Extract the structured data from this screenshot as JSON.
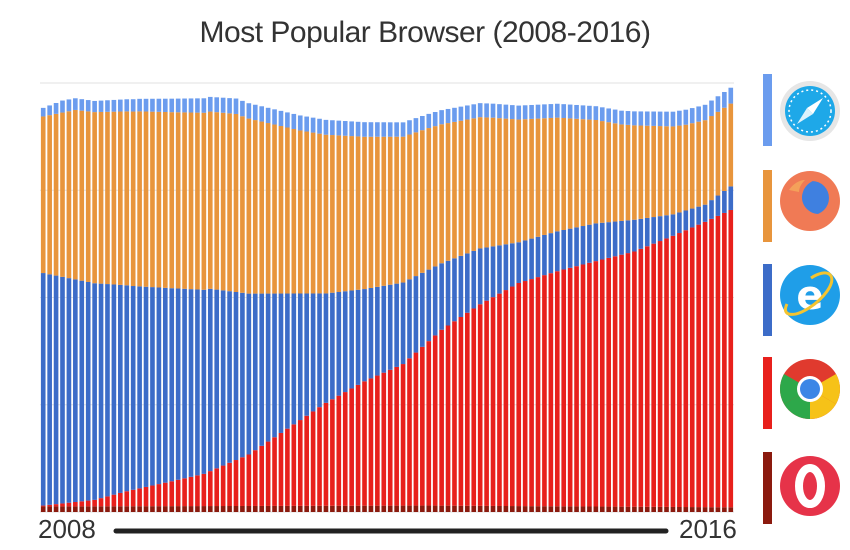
{
  "title": "Most Popular Browser (2008-2016)",
  "chart_data": {
    "type": "bar",
    "stacked": true,
    "percent_stacked": true,
    "x_start_label": "2008",
    "x_end_label": "2016",
    "bar_count": 108,
    "grid": true,
    "legend_position": "right",
    "legend_style": "browser logo icons",
    "series_order_bottom_to_top": [
      "Opera",
      "Chrome",
      "Internet Explorer",
      "Firefox",
      "Safari"
    ],
    "series": [
      {
        "name": "Opera",
        "color": "#8b1a0e",
        "icon": "opera-icon",
        "keyframes": [
          [
            0,
            1.3
          ],
          [
            60,
            1.5
          ],
          [
            107,
            1.1
          ]
        ]
      },
      {
        "name": "Chrome",
        "color": "#e8201c",
        "icon": "chrome-icon",
        "keyframes": [
          [
            0,
            0.2
          ],
          [
            8,
            1.5
          ],
          [
            13,
            3.5
          ],
          [
            20,
            5.8
          ],
          [
            25,
            7.5
          ],
          [
            32,
            12
          ],
          [
            38,
            18
          ],
          [
            44,
            24
          ],
          [
            50,
            29
          ],
          [
            56,
            33
          ],
          [
            62,
            41
          ],
          [
            68,
            47
          ],
          [
            74,
            52
          ],
          [
            80,
            54.8
          ],
          [
            86,
            57.2
          ],
          [
            92,
            59.5
          ],
          [
            98,
            63.2
          ],
          [
            103,
            66.5
          ],
          [
            107,
            69.3
          ]
        ]
      },
      {
        "name": "Internet Explorer",
        "color": "#3c6cc8",
        "icon": "internet-explorer-icon",
        "keyframes": [
          [
            0,
            54.2
          ],
          [
            8,
            50.5
          ],
          [
            14,
            47.5
          ],
          [
            20,
            45
          ],
          [
            26,
            42.5
          ],
          [
            32,
            37.5
          ],
          [
            38,
            31.5
          ],
          [
            44,
            25.5
          ],
          [
            50,
            21.5
          ],
          [
            56,
            19
          ],
          [
            62,
            15.5
          ],
          [
            68,
            13
          ],
          [
            74,
            9.5
          ],
          [
            80,
            9.3
          ],
          [
            86,
            8.8
          ],
          [
            92,
            7.4
          ],
          [
            98,
            5
          ],
          [
            103,
            4
          ],
          [
            107,
            5.5
          ]
        ]
      },
      {
        "name": "Firefox",
        "color": "#e8953c",
        "icon": "firefox-icon",
        "keyframes": [
          [
            0,
            36.5
          ],
          [
            5,
            39.5
          ],
          [
            15,
            40.8
          ],
          [
            30,
            41.5
          ],
          [
            40,
            38
          ],
          [
            50,
            35.5
          ],
          [
            60,
            33
          ],
          [
            70,
            30
          ],
          [
            80,
            26.5
          ],
          [
            90,
            22.5
          ],
          [
            100,
            20
          ],
          [
            107,
            19.3
          ]
        ]
      },
      {
        "name": "Safari",
        "color": "#6b9cee",
        "icon": "safari-icon",
        "keyframes": [
          [
            0,
            2.0
          ],
          [
            3,
            2.8
          ],
          [
            8,
            2.6
          ],
          [
            30,
            3.6
          ],
          [
            60,
            3.3
          ],
          [
            90,
            3.2
          ],
          [
            107,
            3.7
          ]
        ]
      }
    ]
  }
}
